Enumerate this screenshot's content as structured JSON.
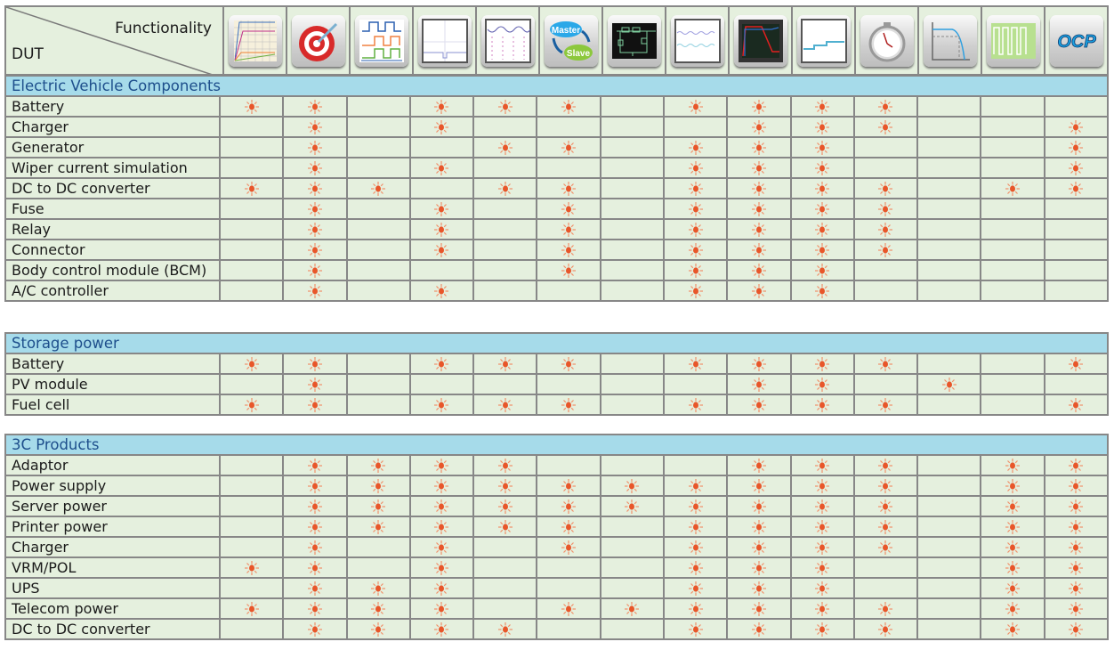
{
  "header": {
    "functionality_label": "Functionality",
    "dut_label": "DUT"
  },
  "functions": [
    {
      "icon": "voltage-ramp-graph-icon"
    },
    {
      "icon": "target-icon"
    },
    {
      "icon": "delay-timing-waveform-icon"
    },
    {
      "icon": "transient-waveform-icon"
    },
    {
      "icon": "dynamic-load-waveform-icon"
    },
    {
      "icon": "master-slave-icon",
      "text_master": "Master",
      "text_slave": "Slave"
    },
    {
      "icon": "circuit-schematic-icon"
    },
    {
      "icon": "ripple-waveform-icon"
    },
    {
      "icon": "short-circuit-scope-icon"
    },
    {
      "icon": "step-level-waveform-icon"
    },
    {
      "icon": "stopwatch-icon"
    },
    {
      "icon": "iv-curve-icon"
    },
    {
      "icon": "square-wave-icon"
    },
    {
      "icon": "ocp-icon",
      "text": "OCP"
    }
  ],
  "colors": {
    "section_bg": "#a6dbea",
    "section_text": "#1e4f8c",
    "cell_bg": "#e5f0de",
    "grid": "#878787",
    "mark": "#e8562a"
  },
  "mark_icon": "sun-icon",
  "sections": [
    {
      "title": "Electric Vehicle Components",
      "rows": [
        {
          "label": "Battery",
          "marks": [
            1,
            2,
            4,
            5,
            6,
            8,
            9,
            10,
            11
          ]
        },
        {
          "label": "Charger",
          "marks": [
            2,
            4,
            9,
            10,
            11,
            14
          ]
        },
        {
          "label": "Generator",
          "marks": [
            2,
            5,
            6,
            8,
            9,
            10,
            14
          ]
        },
        {
          "label": "Wiper current simulation",
          "marks": [
            2,
            4,
            8,
            9,
            10,
            14
          ]
        },
        {
          "label": "DC to DC converter",
          "marks": [
            1,
            2,
            3,
            5,
            6,
            8,
            9,
            10,
            11,
            13,
            14
          ]
        },
        {
          "label": "Fuse",
          "marks": [
            2,
            4,
            6,
            8,
            9,
            10,
            11
          ]
        },
        {
          "label": "Relay",
          "marks": [
            2,
            4,
            6,
            8,
            9,
            10,
            11
          ]
        },
        {
          "label": "Connector",
          "marks": [
            2,
            4,
            6,
            8,
            9,
            10,
            11
          ]
        },
        {
          "label": "Body control module (BCM)",
          "marks": [
            2,
            6,
            8,
            9,
            10
          ]
        },
        {
          "label": "A/C controller",
          "marks": [
            2,
            4,
            8,
            9,
            10
          ]
        }
      ]
    },
    {
      "title": "Storage power",
      "rows": [
        {
          "label": "Battery",
          "marks": [
            1,
            2,
            4,
            5,
            6,
            8,
            9,
            10,
            11,
            14
          ]
        },
        {
          "label": "PV module",
          "marks": [
            2,
            9,
            10,
            12
          ]
        },
        {
          "label": "Fuel cell",
          "marks": [
            1,
            2,
            4,
            5,
            6,
            8,
            9,
            10,
            11,
            14
          ]
        }
      ]
    },
    {
      "title": "3C Products",
      "rows": [
        {
          "label": "Adaptor",
          "marks": [
            2,
            3,
            4,
            5,
            9,
            10,
            11,
            13,
            14
          ]
        },
        {
          "label": "Power supply",
          "marks": [
            2,
            3,
            4,
            5,
            6,
            7,
            8,
            9,
            10,
            11,
            13,
            14
          ]
        },
        {
          "label": "Server power",
          "marks": [
            2,
            3,
            4,
            5,
            6,
            7,
            8,
            9,
            10,
            11,
            13,
            14
          ]
        },
        {
          "label": "Printer power",
          "marks": [
            2,
            3,
            4,
            5,
            6,
            8,
            9,
            10,
            11,
            13,
            14
          ]
        },
        {
          "label": "Charger",
          "marks": [
            2,
            4,
            6,
            8,
            9,
            10,
            11,
            13,
            14
          ]
        },
        {
          "label": "VRM/POL",
          "marks": [
            1,
            2,
            4,
            8,
            9,
            10,
            13,
            14
          ]
        },
        {
          "label": "UPS",
          "marks": [
            2,
            3,
            4,
            8,
            9,
            10,
            13,
            14
          ]
        },
        {
          "label": "Telecom power",
          "marks": [
            1,
            2,
            3,
            4,
            6,
            7,
            8,
            9,
            10,
            11,
            13,
            14
          ]
        },
        {
          "label": "DC to DC converter",
          "marks": [
            2,
            3,
            4,
            5,
            8,
            9,
            10,
            11,
            13,
            14
          ]
        }
      ]
    }
  ]
}
